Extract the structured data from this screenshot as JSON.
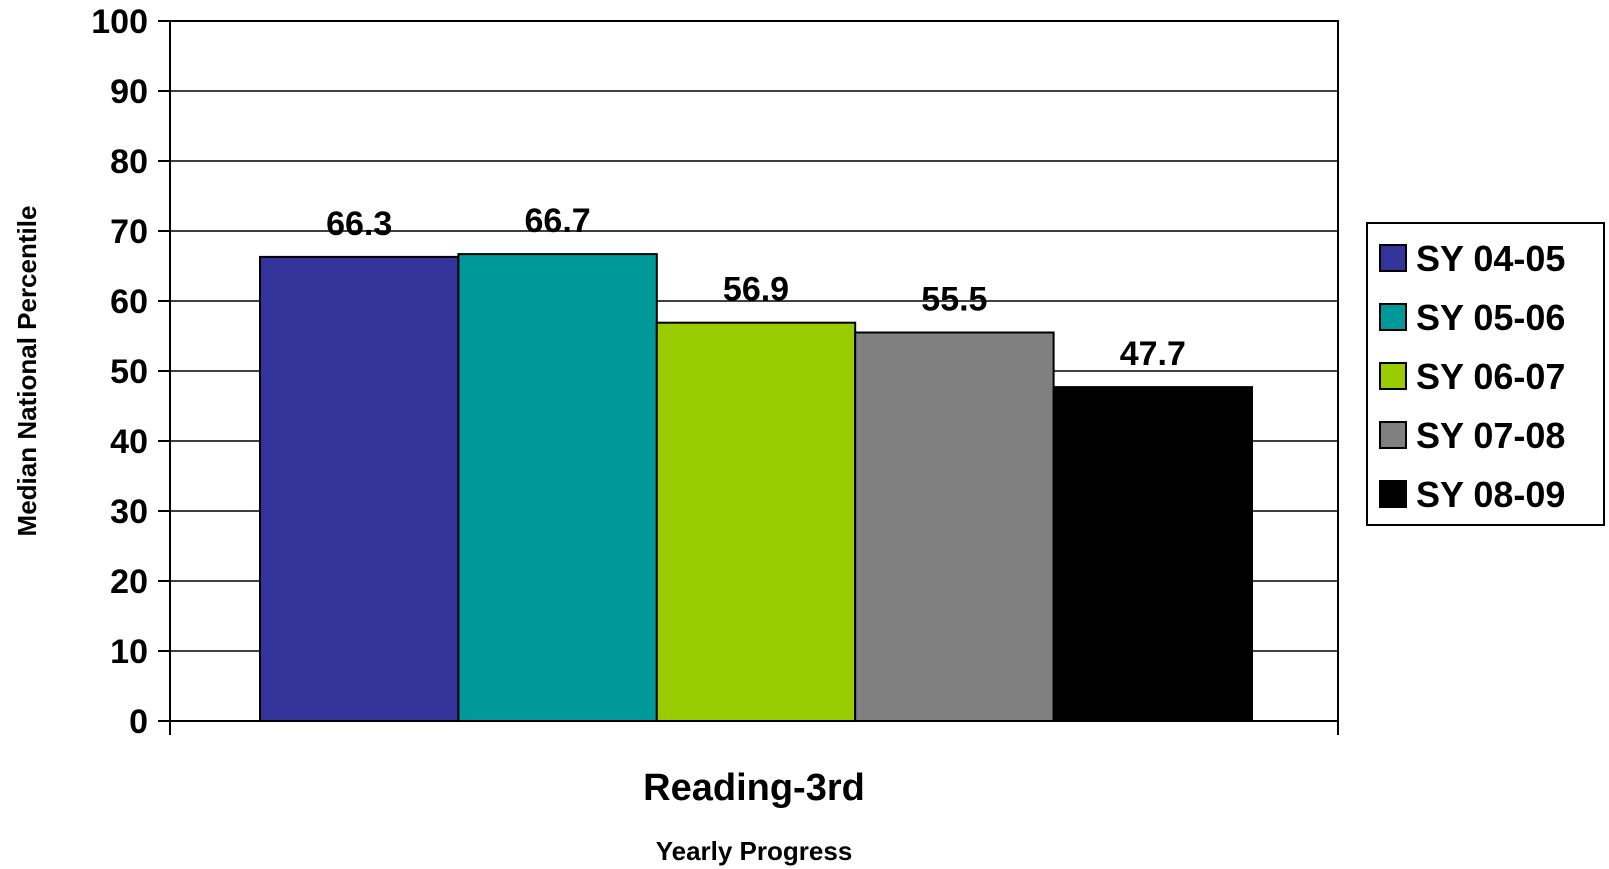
{
  "chart_data": {
    "type": "bar",
    "categories": [
      "Reading-3rd"
    ],
    "series": [
      {
        "name": "SY 04-05",
        "values": [
          66.3
        ],
        "color": "#333399"
      },
      {
        "name": "SY 05-06",
        "values": [
          66.7
        ],
        "color": "#009999"
      },
      {
        "name": "SY 06-07",
        "values": [
          56.9
        ],
        "color": "#99CC00"
      },
      {
        "name": "SY 07-08",
        "values": [
          55.5
        ],
        "color": "#808080"
      },
      {
        "name": "SY 08-09",
        "values": [
          47.7
        ],
        "color": "#000000"
      }
    ],
    "data_labels": [
      "66.3",
      "66.7",
      "56.9",
      "55.5",
      "47.7"
    ],
    "title": "",
    "xlabel": "Yearly Progress",
    "ylabel": "Median National Percentile",
    "ylim": [
      0,
      100
    ],
    "yticks": [
      "0",
      "10",
      "20",
      "30",
      "40",
      "50",
      "60",
      "70",
      "80",
      "90",
      "100"
    ],
    "grid": true,
    "legend_position": "right"
  }
}
